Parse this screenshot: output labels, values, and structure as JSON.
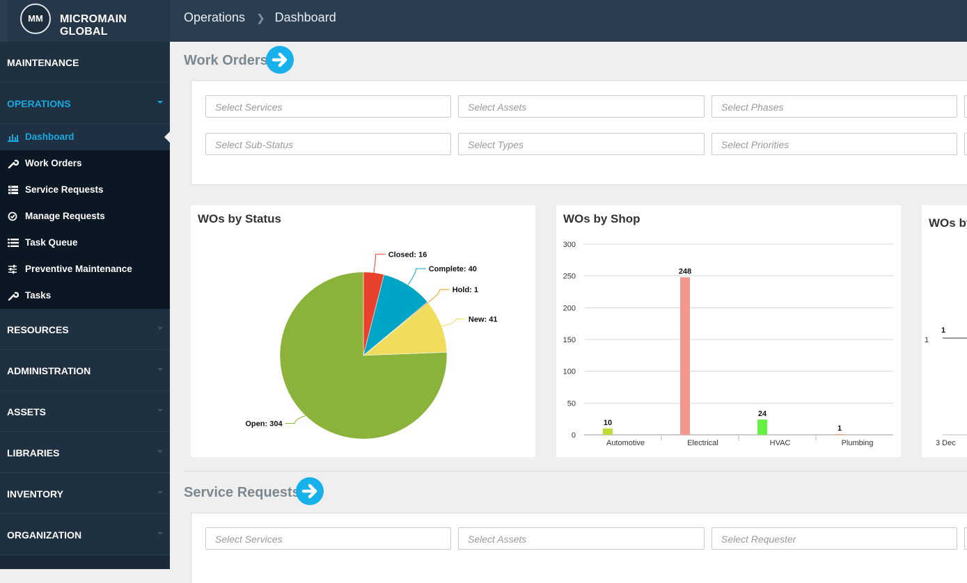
{
  "header": {
    "logo_text": "MM",
    "brand": "MICROMAIN GLOBAL",
    "breadcrumb": [
      "Operations",
      "Dashboard"
    ]
  },
  "sidebar": {
    "sections_top": [
      {
        "label": "MAINTENANCE"
      },
      {
        "label": "OPERATIONS"
      }
    ],
    "operations_items": [
      {
        "label": "Dashboard",
        "icon": "bar-chart-icon"
      },
      {
        "label": "Work Orders",
        "icon": "wrench-icon"
      },
      {
        "label": "Service Requests",
        "icon": "list-form-icon"
      },
      {
        "label": "Manage Requests",
        "icon": "check-circle-icon"
      },
      {
        "label": "Task Queue",
        "icon": "list-icon"
      },
      {
        "label": "Preventive Maintenance",
        "icon": "sliders-icon"
      },
      {
        "label": "Tasks",
        "icon": "wrench-icon"
      }
    ],
    "sections_bottom": [
      {
        "label": "RESOURCES"
      },
      {
        "label": "ADMINISTRATION"
      },
      {
        "label": "ASSETS"
      },
      {
        "label": "LIBRARIES"
      },
      {
        "label": "INVENTORY"
      },
      {
        "label": "ORGANIZATION"
      }
    ]
  },
  "work_orders": {
    "title": "Work Orders",
    "filters_row1": [
      "Select Services",
      "Select Assets",
      "Select Phases"
    ],
    "filters_row2": [
      "Select Sub-Status",
      "Select Types",
      "Select Priorities"
    ]
  },
  "panels": {
    "status_title": "WOs by Status",
    "shop_title": "WOs by Shop",
    "third_title": "WOs by"
  },
  "chart_data": [
    {
      "type": "pie",
      "title": "WOs by Status",
      "labels": [
        "Closed",
        "Complete",
        "Hold",
        "New",
        "Open"
      ],
      "values": [
        16,
        40,
        1,
        41,
        304
      ],
      "colors": [
        "#e8412c",
        "#00a5c5",
        "#f29b1d",
        "#f2dc5d",
        "#8bb23b"
      ]
    },
    {
      "type": "bar",
      "title": "WOs by Shop",
      "categories": [
        "Automotive",
        "Electrical",
        "HVAC",
        "Plumbing"
      ],
      "values": [
        10,
        248,
        24,
        1
      ],
      "colors": [
        "#bddb35",
        "#f4978e",
        "#66ef44",
        "#f4a45a"
      ],
      "ylim": [
        0,
        300
      ],
      "yticks": [
        0,
        50,
        100,
        150,
        200,
        250,
        300
      ],
      "grid": true
    },
    {
      "type": "line",
      "title": "WOs by",
      "x": [
        "3 Dec"
      ],
      "values": [
        1
      ],
      "yticks": [
        1
      ]
    }
  ],
  "service_requests": {
    "title": "Service Requests",
    "filters_row1": [
      "Select Services",
      "Select Assets",
      "Select Requester"
    ]
  }
}
